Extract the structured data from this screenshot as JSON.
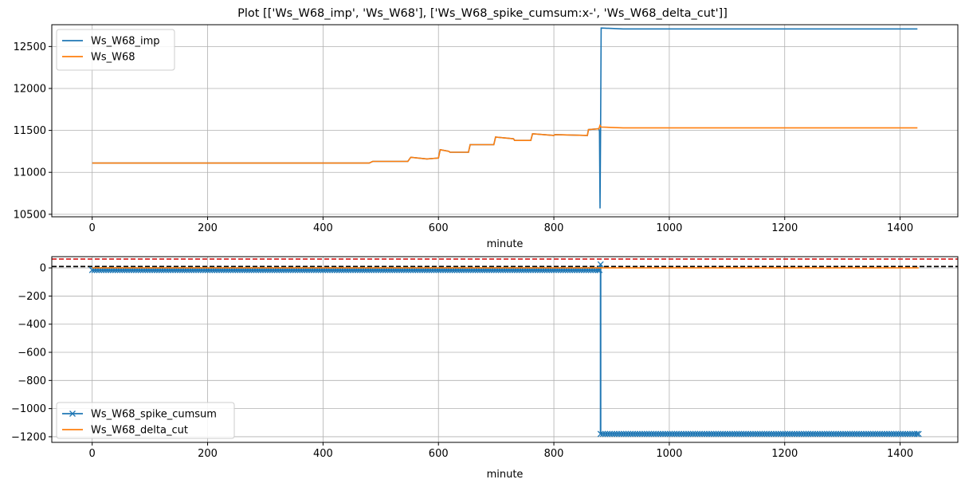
{
  "title": "Plot [['Ws_W68_imp', 'Ws_W68'], ['Ws_W68_spike_cumsum:x-', 'Ws_W68_delta_cut']]",
  "chart_data": [
    {
      "type": "line",
      "xlabel": "minute",
      "ylabel": "",
      "xlim": [
        -70,
        1500
      ],
      "ylim": [
        10470,
        12760
      ],
      "xticks": [
        0,
        200,
        400,
        600,
        800,
        1000,
        1200,
        1400
      ],
      "yticks": [
        10500,
        11000,
        11500,
        12000,
        12500
      ],
      "grid": true,
      "legend_position": "top-left",
      "series": [
        {
          "name": "Ws_W68_imp",
          "color": "#1f77b4",
          "x": [
            0,
            480,
            486,
            547,
            552,
            580,
            600,
            603,
            618,
            620,
            652,
            655,
            696,
            699,
            730,
            732,
            760,
            763,
            800,
            802,
            858,
            860,
            878,
            879,
            880,
            881,
            882,
            883,
            920,
            1430
          ],
          "y": [
            11110,
            11110,
            11130,
            11130,
            11180,
            11160,
            11170,
            11270,
            11250,
            11240,
            11240,
            11330,
            11330,
            11420,
            11400,
            11380,
            11380,
            11460,
            11440,
            11450,
            11440,
            11510,
            11520,
            11490,
            10570,
            11500,
            12720,
            12720,
            12710,
            12710
          ]
        },
        {
          "name": "Ws_W68",
          "color": "#ff7f0e",
          "x": [
            0,
            480,
            486,
            547,
            552,
            580,
            600,
            603,
            618,
            620,
            652,
            655,
            696,
            699,
            730,
            732,
            760,
            763,
            800,
            802,
            858,
            860,
            878,
            880,
            882,
            920,
            1430
          ],
          "y": [
            11110,
            11110,
            11130,
            11130,
            11180,
            11160,
            11170,
            11270,
            11250,
            11240,
            11240,
            11330,
            11330,
            11420,
            11400,
            11380,
            11380,
            11460,
            11440,
            11450,
            11440,
            11510,
            11520,
            11560,
            11540,
            11530,
            11530
          ]
        }
      ]
    },
    {
      "type": "line",
      "xlabel": "minute",
      "ylabel": "",
      "xlim": [
        -70,
        1500
      ],
      "ylim": [
        -1240,
        80
      ],
      "xticks": [
        0,
        200,
        400,
        600,
        800,
        1000,
        1200,
        1400
      ],
      "yticks": [
        0,
        -200,
        -400,
        -600,
        -800,
        -1000,
        -1200
      ],
      "grid": true,
      "legend_position": "bottom-left",
      "reference_lines": [
        {
          "y": 63,
          "color": "#d62728",
          "style": "dashed"
        },
        {
          "y": 10,
          "color": "#000000",
          "style": "dashed"
        }
      ],
      "series": [
        {
          "name": "Ws_W68_spike_cumsum",
          "color": "#1f77b4",
          "marker": "x",
          "x": [
            0,
            879,
            881,
            881,
            1432
          ],
          "y": [
            -15,
            -15,
            25,
            -1180,
            -1180
          ]
        },
        {
          "name": "Ws_W68_delta_cut",
          "color": "#ff7f0e",
          "x": [
            0,
            1432
          ],
          "y": [
            0,
            0
          ]
        }
      ]
    }
  ]
}
